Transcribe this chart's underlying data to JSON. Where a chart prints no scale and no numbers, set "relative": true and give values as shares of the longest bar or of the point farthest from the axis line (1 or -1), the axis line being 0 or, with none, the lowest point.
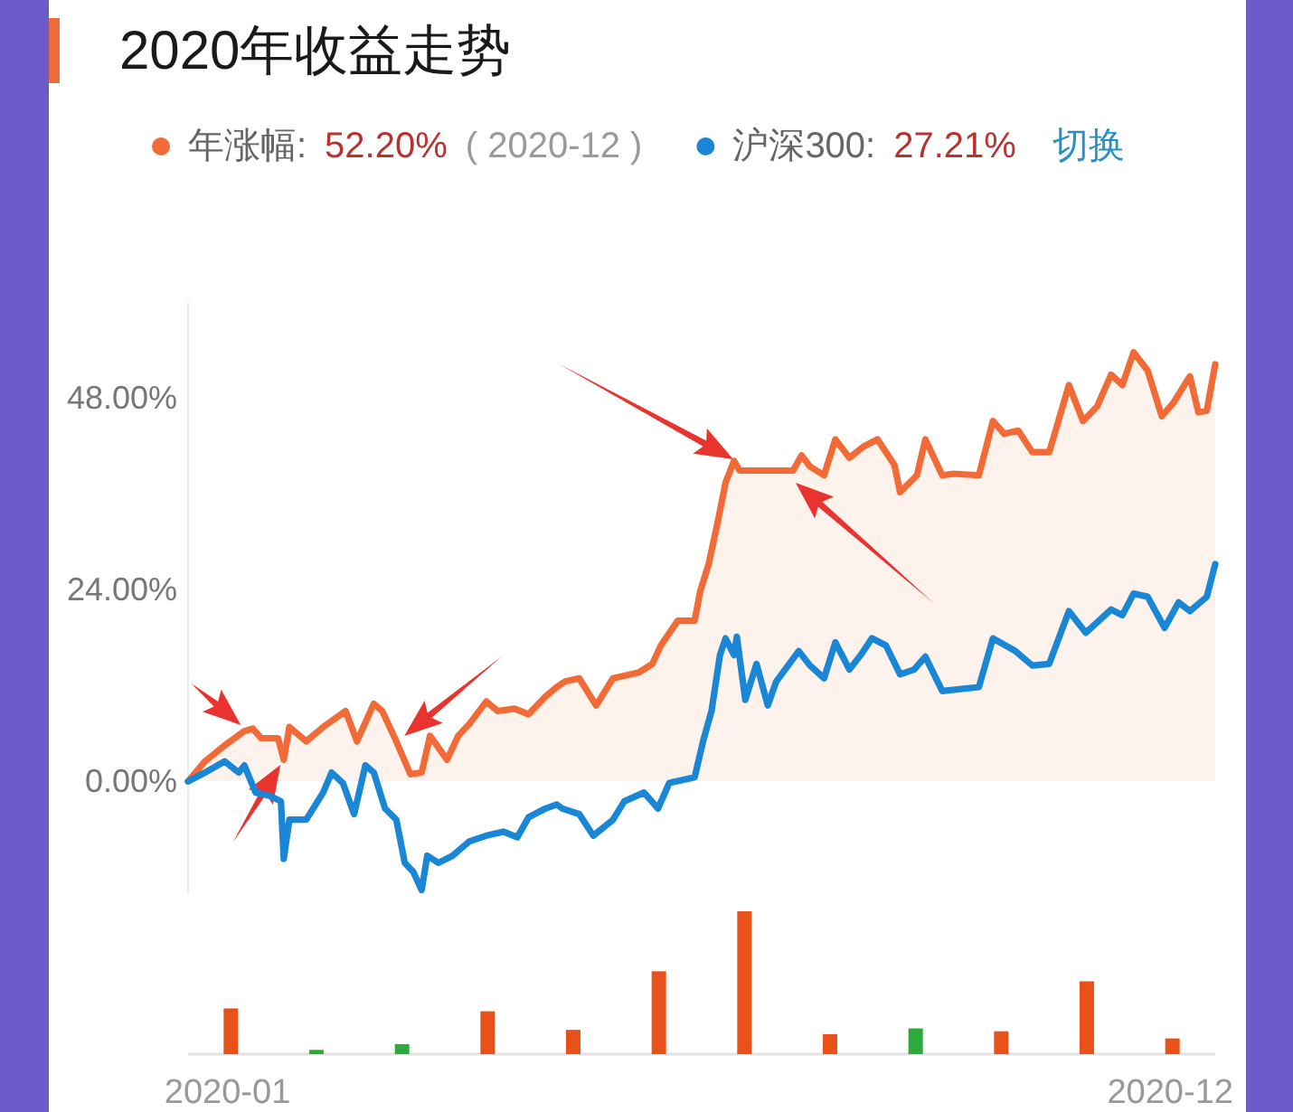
{
  "chart_data": [
    {
      "type": "line",
      "title": "2020年收益走势",
      "legend": "top",
      "annotations": [
        "52.20%",
        "( 2020-12 )",
        "27.21%",
        "切换"
      ],
      "xlim": [
        "2020-01-01",
        "2020-12-31"
      ],
      "xticks": [
        {
          "value": "2020-01-15",
          "label": "2020-01"
        },
        {
          "value": "2020-12-15",
          "label": "2020-12"
        }
      ],
      "ylim": [
        -14,
        60
      ],
      "yticks": [
        {
          "value": 0,
          "label": "0.00%"
        },
        {
          "value": 24,
          "label": "24.00%"
        },
        {
          "value": 48,
          "label": "48.00%"
        }
      ],
      "series": [
        {
          "name": "年涨幅:",
          "type": "area",
          "color": "#f26a35",
          "x": [
            "2020-01-01",
            "2020-01-07",
            "2020-01-14",
            "2020-01-21",
            "2020-01-24",
            "2020-01-27",
            "2020-02-02",
            "2020-02-04",
            "2020-02-06",
            "2020-02-12",
            "2020-02-18",
            "2020-02-26",
            "2020-03-01",
            "2020-03-07",
            "2020-03-10",
            "2020-03-15",
            "2020-03-20",
            "2020-03-24",
            "2020-03-27",
            "2020-04-02",
            "2020-04-06",
            "2020-04-10",
            "2020-04-16",
            "2020-04-20",
            "2020-04-26",
            "2020-05-01",
            "2020-05-07",
            "2020-05-11",
            "2020-05-14",
            "2020-05-19",
            "2020-05-25",
            "2020-05-31",
            "2020-06-09",
            "2020-06-14",
            "2020-06-17",
            "2020-06-23",
            "2020-06-29",
            "2020-07-01",
            "2020-07-04",
            "2020-07-07",
            "2020-07-10",
            "2020-07-13",
            "2020-07-15",
            "2020-08-03",
            "2020-08-06",
            "2020-08-09",
            "2020-08-14",
            "2020-08-18",
            "2020-08-23",
            "2020-08-28",
            "2020-09-02",
            "2020-09-08",
            "2020-09-10",
            "2020-09-16",
            "2020-09-19",
            "2020-09-25",
            "2020-09-29",
            "2020-10-08",
            "2020-10-13",
            "2020-10-17",
            "2020-10-22",
            "2020-10-27",
            "2020-11-02",
            "2020-11-09",
            "2020-11-14",
            "2020-11-19",
            "2020-11-24",
            "2020-11-28",
            "2020-12-02",
            "2020-12-07",
            "2020-12-12",
            "2020-12-16",
            "2020-12-22",
            "2020-12-25",
            "2020-12-28",
            "2020-12-31"
          ],
          "values": [
            0,
            2.5,
            4.5,
            6.3,
            6.6,
            5.4,
            5.4,
            2.7,
            6.8,
            5.0,
            6.8,
            8.8,
            5.0,
            9.7,
            8.8,
            5.0,
            0.9,
            1.1,
            5.7,
            2.7,
            5.7,
            7.2,
            10.0,
            8.8,
            9.1,
            8.4,
            10.6,
            11.8,
            12.5,
            12.9,
            9.5,
            12.9,
            13.6,
            14.7,
            17.0,
            20.1,
            20.1,
            23.8,
            27.2,
            32.1,
            37.4,
            40.1,
            38.9,
            38.9,
            40.8,
            39.4,
            38.3,
            42.8,
            40.5,
            41.9,
            42.8,
            39.6,
            36.2,
            38.3,
            42.8,
            38.3,
            38.5,
            38.3,
            45.1,
            43.5,
            43.9,
            41.2,
            41.2,
            49.6,
            45.1,
            46.9,
            50.9,
            49.6,
            53.7,
            51.4,
            45.7,
            47.3,
            50.7,
            46.2,
            46.4,
            52.2
          ]
        },
        {
          "name": "沪深300:",
          "color": "#1a86d6",
          "x": [
            "2020-01-01",
            "2020-01-07",
            "2020-01-14",
            "2020-01-19",
            "2020-01-21",
            "2020-01-25",
            "2020-01-30",
            "2020-02-03",
            "2020-02-04",
            "2020-02-06",
            "2020-02-12",
            "2020-02-18",
            "2020-02-21",
            "2020-02-25",
            "2020-02-29",
            "2020-03-04",
            "2020-03-07",
            "2020-03-11",
            "2020-03-15",
            "2020-03-18",
            "2020-03-21",
            "2020-03-24",
            "2020-03-26",
            "2020-03-30",
            "2020-04-04",
            "2020-04-10",
            "2020-04-16",
            "2020-04-22",
            "2020-04-27",
            "2020-05-01",
            "2020-05-07",
            "2020-05-11",
            "2020-05-13",
            "2020-05-19",
            "2020-05-24",
            "2020-05-31",
            "2020-06-04",
            "2020-06-11",
            "2020-06-16",
            "2020-06-20",
            "2020-06-29",
            "2020-07-02",
            "2020-07-05",
            "2020-07-08",
            "2020-07-10",
            "2020-07-13",
            "2020-07-14",
            "2020-07-17",
            "2020-07-21",
            "2020-07-25",
            "2020-07-28",
            "2020-08-05",
            "2020-08-09",
            "2020-08-14",
            "2020-08-18",
            "2020-08-23",
            "2020-08-27",
            "2020-08-31",
            "2020-09-05",
            "2020-09-10",
            "2020-09-15",
            "2020-09-19",
            "2020-09-25",
            "2020-10-08",
            "2020-10-13",
            "2020-10-21",
            "2020-10-27",
            "2020-11-02",
            "2020-11-09",
            "2020-11-15",
            "2020-11-24",
            "2020-11-28",
            "2020-12-02",
            "2020-12-07",
            "2020-12-13",
            "2020-12-18",
            "2020-12-22",
            "2020-12-28",
            "2020-12-31"
          ],
          "values": [
            0,
            1.1,
            2.5,
            1.1,
            2.0,
            -1.4,
            -1.8,
            -2.5,
            -9.7,
            -4.8,
            -4.8,
            -1.4,
            1.1,
            -0.2,
            -4.1,
            2.0,
            1.1,
            -3.4,
            -4.8,
            -10.2,
            -11.3,
            -13.6,
            -9.3,
            -10.2,
            -9.3,
            -7.5,
            -6.8,
            -6.3,
            -7.0,
            -4.5,
            -3.4,
            -2.9,
            -3.4,
            -4.1,
            -6.8,
            -4.8,
            -2.5,
            -1.4,
            -3.4,
            -0.2,
            0.5,
            5.0,
            8.8,
            15.8,
            17.9,
            15.8,
            18.1,
            10.2,
            14.7,
            9.5,
            12.5,
            16.3,
            14.5,
            12.9,
            17.4,
            14.0,
            15.8,
            17.9,
            17.0,
            13.4,
            14.0,
            15.6,
            11.3,
            11.8,
            17.9,
            16.3,
            14.5,
            14.7,
            21.3,
            18.6,
            21.5,
            20.8,
            23.5,
            23.1,
            19.2,
            22.4,
            21.3,
            23.1,
            27.2
          ]
        }
      ]
    },
    {
      "type": "bar",
      "relative": true,
      "categories": [
        null,
        null,
        null,
        null,
        null,
        null,
        null,
        null,
        null,
        null,
        null,
        null
      ],
      "values": [
        0.32,
        0.03,
        0.07,
        0.3,
        0.17,
        0.58,
        1,
        0.14,
        0.18,
        0.16,
        0.51,
        0.11
      ],
      "colors": [
        "#e8511a",
        "#2eaa3c",
        "#2eaa3c",
        "#e8511a",
        "#e8511a",
        "#e8511a",
        "#e8511a",
        "#e8511a",
        "#2eaa3c",
        "#e8511a",
        "#e8511a",
        "#e8511a"
      ]
    }
  ]
}
